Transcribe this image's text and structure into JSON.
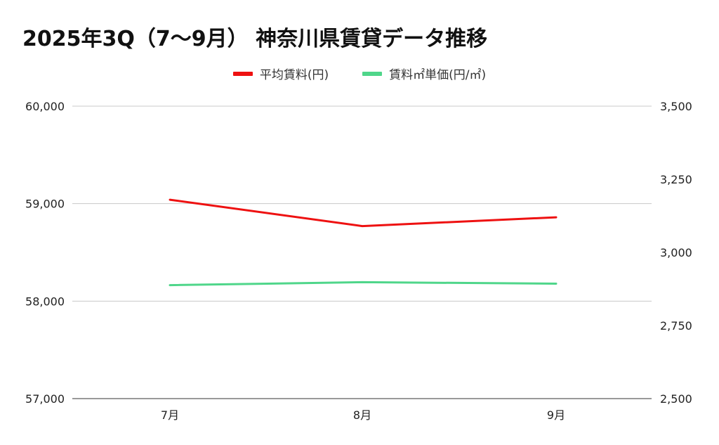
{
  "chart_data": {
    "type": "line",
    "title": "2025年3Q（7〜9月） 神奈川県賃貸データ推移",
    "categories": [
      "7月",
      "8月",
      "9月"
    ],
    "series": [
      {
        "name": "平均賃料(円)",
        "axis": "left",
        "color": "#ee1111",
        "values": [
          59040,
          58770,
          58860
        ]
      },
      {
        "name": "賃料㎡単価(円/㎡)",
        "axis": "right",
        "color": "#4fd68a",
        "values": [
          2888,
          2898,
          2893
        ]
      }
    ],
    "y_left": {
      "range": [
        57000,
        60000
      ],
      "ticks": [
        "57,000",
        "58,000",
        "59,000",
        "60,000"
      ]
    },
    "y_right": {
      "range": [
        2500,
        3500
      ],
      "ticks": [
        "2,500",
        "2,750",
        "3,000",
        "3,250",
        "3,500"
      ]
    },
    "grid": true,
    "legend_position": "top-center"
  }
}
